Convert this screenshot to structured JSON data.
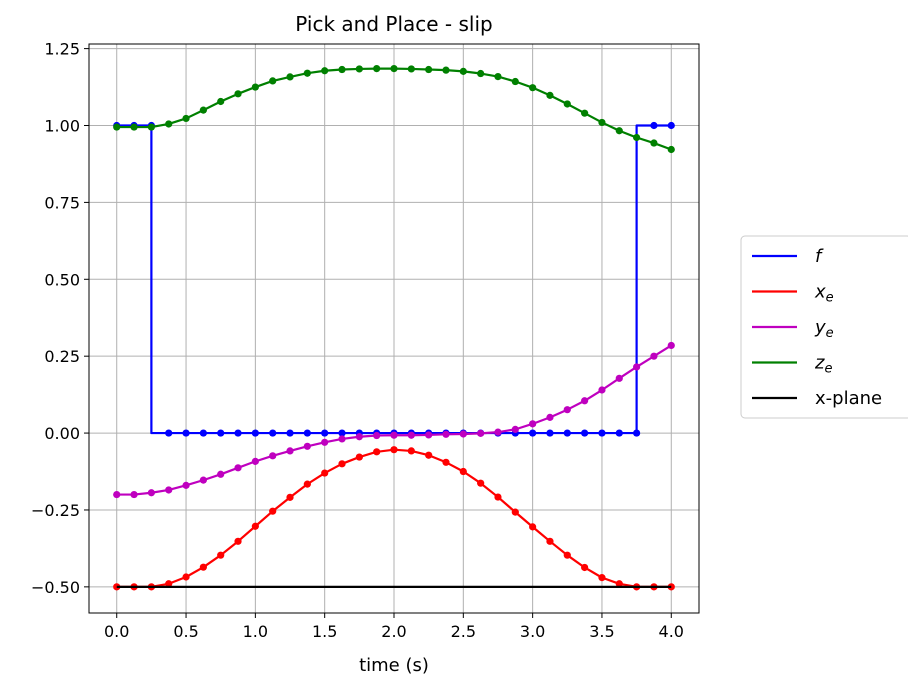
{
  "chart_data": {
    "type": "line",
    "title": "Pick and Place - slip",
    "xlabel": "time (s)",
    "ylabel": "",
    "xlim": [
      -0.2,
      4.2
    ],
    "ylim": [
      -0.585,
      1.265
    ],
    "xticks": [
      0.0,
      0.5,
      1.0,
      1.5,
      2.0,
      2.5,
      3.0,
      3.5,
      4.0
    ],
    "xtick_labels": [
      "0.0",
      "0.5",
      "1.0",
      "1.5",
      "2.0",
      "2.5",
      "3.0",
      "3.5",
      "4.0"
    ],
    "yticks": [
      -0.5,
      -0.25,
      0.0,
      0.25,
      0.5,
      0.75,
      1.0,
      1.25
    ],
    "ytick_labels": [
      "−0.50",
      "−0.25",
      "0.00",
      "0.25",
      "0.50",
      "0.75",
      "1.00",
      "1.25"
    ],
    "grid": true,
    "legend_position": "outside-right",
    "t": [
      0.0,
      0.125,
      0.25,
      0.375,
      0.5,
      0.625,
      0.75,
      0.875,
      1.0,
      1.125,
      1.25,
      1.375,
      1.5,
      1.625,
      1.75,
      1.875,
      2.0,
      2.125,
      2.25,
      2.375,
      2.5,
      2.625,
      2.75,
      2.875,
      3.0,
      3.125,
      3.25,
      3.375,
      3.5,
      3.625,
      3.75,
      3.875,
      4.0
    ],
    "series": [
      {
        "name": "f",
        "label_main": "f",
        "label_sub": "",
        "color": "#0000ff",
        "style": "step-pre",
        "markers": true,
        "values": [
          1,
          1,
          1,
          0,
          0,
          0,
          0,
          0,
          0,
          0,
          0,
          0,
          0,
          0,
          0,
          0,
          0,
          0,
          0,
          0,
          0,
          0,
          0,
          0,
          0,
          0,
          0,
          0,
          0,
          0,
          0,
          1,
          1
        ]
      },
      {
        "name": "x_e",
        "label_main": "x",
        "label_sub": "e",
        "color": "#ff0000",
        "style": "line",
        "markers": true,
        "values": [
          -0.5,
          -0.5,
          -0.5,
          -0.49,
          -0.468,
          -0.436,
          -0.397,
          -0.352,
          -0.303,
          -0.254,
          -0.209,
          -0.166,
          -0.13,
          -0.1,
          -0.078,
          -0.061,
          -0.054,
          -0.058,
          -0.072,
          -0.095,
          -0.125,
          -0.163,
          -0.208,
          -0.257,
          -0.305,
          -0.352,
          -0.397,
          -0.437,
          -0.47,
          -0.49,
          -0.5,
          -0.5,
          -0.5
        ]
      },
      {
        "name": "y_e",
        "label_main": "y",
        "label_sub": "e",
        "color": "#bf00bf",
        "style": "line",
        "markers": true,
        "values": [
          -0.2,
          -0.2,
          -0.194,
          -0.185,
          -0.17,
          -0.153,
          -0.134,
          -0.113,
          -0.092,
          -0.074,
          -0.058,
          -0.043,
          -0.03,
          -0.019,
          -0.012,
          -0.008,
          -0.007,
          -0.007,
          -0.006,
          -0.004,
          -0.003,
          -0.001,
          0.003,
          0.012,
          0.03,
          0.051,
          0.076,
          0.105,
          0.14,
          0.178,
          0.215,
          0.25,
          0.285
        ]
      },
      {
        "name": "z_e",
        "label_main": "z",
        "label_sub": "e",
        "color": "#008000",
        "style": "line",
        "markers": true,
        "values": [
          0.995,
          0.995,
          0.995,
          1.005,
          1.023,
          1.05,
          1.078,
          1.103,
          1.125,
          1.145,
          1.158,
          1.17,
          1.178,
          1.182,
          1.184,
          1.185,
          1.185,
          1.184,
          1.182,
          1.18,
          1.176,
          1.169,
          1.159,
          1.143,
          1.123,
          1.098,
          1.07,
          1.04,
          1.01,
          0.983,
          0.961,
          0.943,
          0.922
        ]
      },
      {
        "name": "x-plane",
        "label_main": "x-plane",
        "label_sub": "",
        "color": "#000000",
        "style": "hline",
        "markers": false,
        "value": -0.5
      }
    ]
  }
}
